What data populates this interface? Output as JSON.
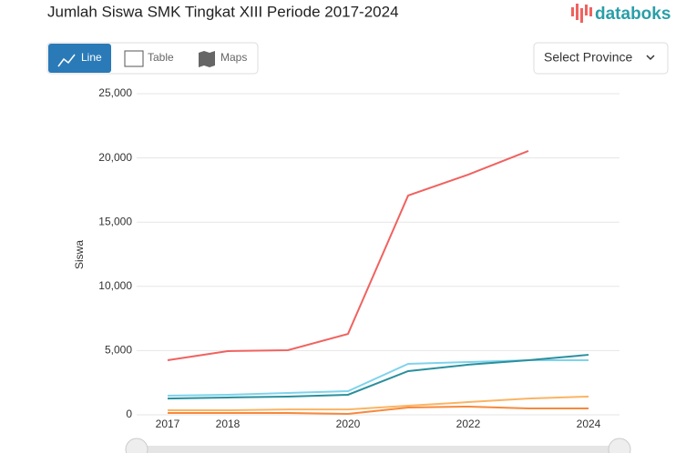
{
  "header": {
    "title": "Jumlah Siswa SMK Tingkat XIII Periode 2017-2024",
    "logo": "databoks"
  },
  "controls": {
    "tabs": [
      "Line",
      "Table",
      "Maps"
    ],
    "select": "Select Province"
  },
  "chart_data": {
    "type": "line",
    "y_label": "Siswa",
    "x": [
      2017,
      2018,
      2019,
      2020,
      2021,
      2022,
      2023,
      2024
    ],
    "xlim": [
      2017,
      2024
    ],
    "xticks": [
      2017,
      2018,
      2020,
      2022,
      2024
    ],
    "ylim": [
      0,
      25000
    ],
    "yticks": [
      0,
      {
        "value": 5000,
        "label": "5,000"
      },
      {
        "value": 10000,
        "label": "10,000"
      },
      {
        "value": 15000,
        "label": "15,000"
      },
      {
        "value": 20000,
        "label": "20,000"
      },
      {
        "value": 25000,
        "label": "25,000"
      }
    ],
    "grid": true,
    "series": [
      {
        "color": "#f0625f",
        "values": [
          4250,
          4960,
          5030,
          6300,
          17070,
          18700,
          20540,
          null
        ]
      },
      {
        "color": "#7fd3ec",
        "values": [
          1490,
          1560,
          1700,
          1840,
          3970,
          4110,
          4250,
          4250
        ]
      },
      {
        "color": "#2a8f9c",
        "values": [
          1270,
          1350,
          1420,
          1560,
          3400,
          3900,
          4250,
          4670
        ]
      },
      {
        "color": "#fbb463",
        "values": [
          350,
          350,
          420,
          420,
          710,
          990,
          1270,
          1420
        ]
      },
      {
        "color": "#f7893c",
        "values": [
          140,
          140,
          140,
          70,
          570,
          640,
          500,
          500
        ]
      }
    ]
  }
}
